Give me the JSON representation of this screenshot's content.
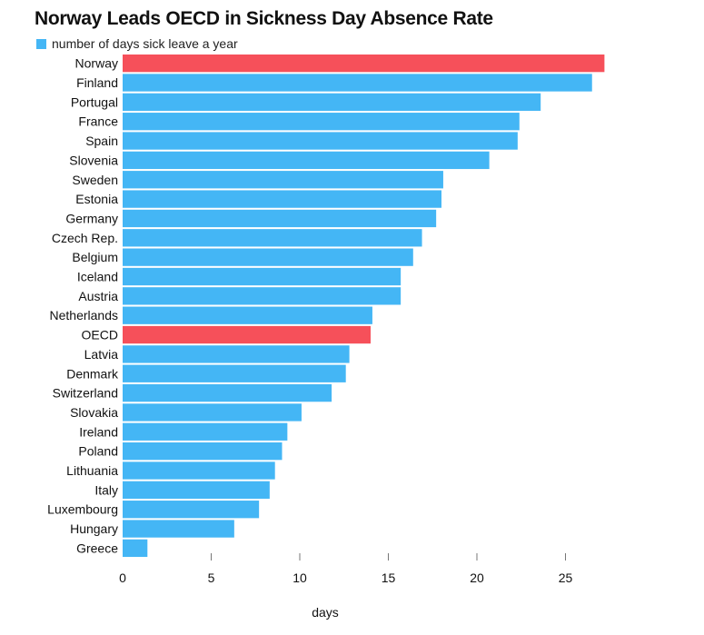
{
  "chart_data": {
    "type": "bar",
    "orientation": "horizontal",
    "title": "Norway Leads OECD in Sickness Day Absence Rate",
    "legend": "number of days sick leave a year",
    "legend_placement": "top-left",
    "xlabel": "days",
    "ylabel": "",
    "xlim": [
      0,
      27.5
    ],
    "xticks": [
      0,
      5,
      10,
      15,
      20,
      25
    ],
    "grid": false,
    "colors": {
      "default": "#44b6f5",
      "highlight": "#f6505a"
    },
    "categories": [
      "Norway",
      "Finland",
      "Portugal",
      "France",
      "Spain",
      "Slovenia",
      "Sweden",
      "Estonia",
      "Germany",
      "Czech Rep.",
      "Belgium",
      "Iceland",
      "Austria",
      "Netherlands",
      "OECD",
      "Latvia",
      "Denmark",
      "Switzerland",
      "Slovakia",
      "Ireland",
      "Poland",
      "Lithuania",
      "Italy",
      "Luxembourg",
      "Hungary",
      "Greece"
    ],
    "values": [
      27.2,
      26.5,
      23.6,
      22.4,
      22.3,
      20.7,
      18.1,
      18.0,
      17.7,
      16.9,
      16.4,
      15.7,
      15.7,
      14.1,
      14.0,
      12.8,
      12.6,
      11.8,
      10.1,
      9.3,
      9.0,
      8.6,
      8.3,
      7.7,
      6.3,
      1.4
    ],
    "highlighted": [
      "Norway",
      "OECD"
    ]
  }
}
